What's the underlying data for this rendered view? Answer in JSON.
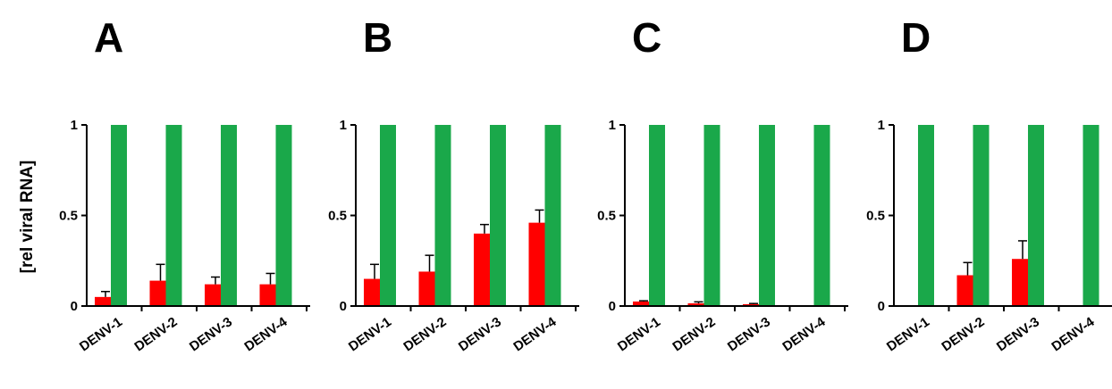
{
  "figure": {
    "ylabel": "[rel viral RNA]",
    "colors": {
      "control": "#1aa84a",
      "treated": "#ff0000",
      "axis": "#000000"
    }
  },
  "chart_data": [
    {
      "type": "bar",
      "panel": "A",
      "categories": [
        "DENV-1",
        "DENV-2",
        "DENV-3",
        "DENV-4"
      ],
      "yticks": [
        "0",
        "0.5",
        "1"
      ],
      "ylim": [
        0,
        1
      ],
      "series": [
        {
          "values": [
            1,
            1,
            1,
            1
          ]
        },
        {
          "values": [
            0.05,
            0.14,
            0.12,
            0.12
          ],
          "errors": [
            0.03,
            0.09,
            0.04,
            0.06
          ]
        }
      ]
    },
    {
      "type": "bar",
      "panel": "B",
      "categories": [
        "DENV-1",
        "DENV-2",
        "DENV-3",
        "DENV-4"
      ],
      "yticks": [
        "0",
        "0.5",
        "1"
      ],
      "ylim": [
        0,
        1
      ],
      "series": [
        {
          "values": [
            1,
            1,
            1,
            1
          ]
        },
        {
          "values": [
            0.15,
            0.19,
            0.4,
            0.46
          ],
          "errors": [
            0.08,
            0.09,
            0.05,
            0.07
          ]
        }
      ]
    },
    {
      "type": "bar",
      "panel": "C",
      "categories": [
        "DENV-1",
        "DENV-2",
        "DENV-3",
        "DENV-4"
      ],
      "yticks": [
        "0",
        "0.5",
        "1"
      ],
      "ylim": [
        0,
        1
      ],
      "series": [
        {
          "values": [
            1,
            1,
            1,
            1
          ]
        },
        {
          "values": [
            0.025,
            0.015,
            0.01,
            0.0
          ],
          "errors": [
            0.004,
            0.008,
            0.004,
            0.0
          ]
        }
      ]
    },
    {
      "type": "bar",
      "panel": "D",
      "categories": [
        "DENV-1",
        "DENV-2",
        "DENV-3",
        "DENV-4"
      ],
      "yticks": [
        "0",
        "0.5",
        "1"
      ],
      "ylim": [
        0,
        1
      ],
      "series": [
        {
          "values": [
            1,
            1,
            1,
            1
          ]
        },
        {
          "values": [
            0.0,
            0.17,
            0.26,
            0.0
          ],
          "errors": [
            0.0,
            0.07,
            0.1,
            0.0
          ]
        }
      ]
    }
  ]
}
